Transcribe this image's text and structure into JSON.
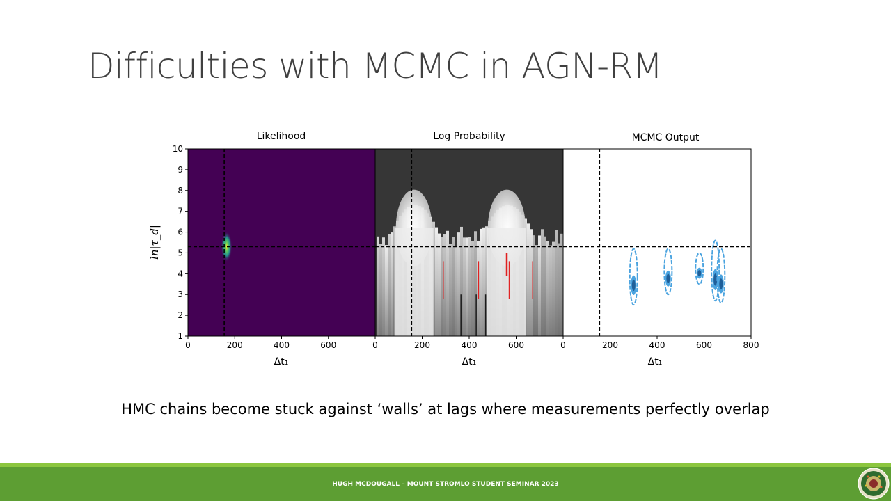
{
  "slide": {
    "title": "Difficulties with MCMC in AGN-RM",
    "caption": "HMC chains become stuck against ‘walls’ at lags where measurements perfectly overlap",
    "footer": "HUGH MCDOUGALL – MOUNT STROMLO STUDENT SEMINAR 2023",
    "logo_icon": "university-seal-icon"
  },
  "colors": {
    "footer_bar": "#5d9e33",
    "footer_accent": "#8cc63f",
    "likelihood_bg": "#440154",
    "logprob_bg": "#363636",
    "contour_outer": "#4aa3df",
    "contour_inner": "#1f5f99",
    "walls": "#e02020"
  },
  "chart_data": [
    {
      "type": "heatmap",
      "title": "Likelihood",
      "xlabel": "Δt₁",
      "ylabel": "ln|τ_d|",
      "xlim": [
        0,
        800
      ],
      "ylim": [
        1,
        10
      ],
      "xticks": [
        0,
        200,
        400,
        600
      ],
      "yticks": [
        1,
        2,
        3,
        4,
        5,
        6,
        7,
        8,
        9,
        10
      ],
      "colormap": "viridis",
      "peak": {
        "x": 165,
        "y": 5.3
      },
      "truth": {
        "x": 155,
        "y": 5.3
      }
    },
    {
      "type": "heatmap",
      "title": "Log Probability",
      "xlabel": "Δt₁",
      "xlim": [
        0,
        800
      ],
      "ylim": [
        1,
        10
      ],
      "xticks": [
        0,
        200,
        400,
        600
      ],
      "colormap": "greys",
      "high_regions": [
        {
          "x_center": 165,
          "half_width": 110,
          "top_y": 7.3
        },
        {
          "x_center": 560,
          "half_width": 115,
          "top_y": 7.3
        }
      ],
      "red_walls_x": [
        290,
        440,
        560,
        570,
        670
      ],
      "truth": {
        "x": 155,
        "y": 5.3
      }
    },
    {
      "type": "scatter",
      "title": "MCMC Output",
      "xlabel": "Δt₁",
      "xlim": [
        0,
        800
      ],
      "ylim": [
        1,
        10
      ],
      "xticks": [
        0,
        200,
        400,
        600,
        800
      ],
      "clusters": [
        {
          "x": 300,
          "y_min": 2.5,
          "y_max": 5.2
        },
        {
          "x": 447,
          "y_min": 3.0,
          "y_max": 5.2
        },
        {
          "x": 580,
          "y_min": 3.5,
          "y_max": 5.0
        },
        {
          "x": 648,
          "y_min": 2.7,
          "y_max": 5.6
        },
        {
          "x": 672,
          "y_min": 2.6,
          "y_max": 5.2
        }
      ],
      "truth": {
        "x": 155,
        "y": 5.3
      }
    }
  ]
}
